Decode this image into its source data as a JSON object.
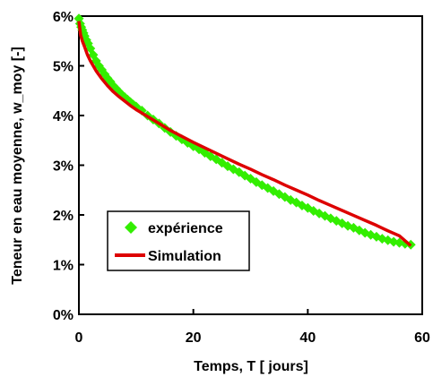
{
  "chart_data": {
    "type": "scatter",
    "title": "",
    "xlabel": "Temps, T [ jours]",
    "ylabel": "Teneur en eau moyenne, w_moy [-]",
    "xlim": [
      0,
      60
    ],
    "ylim": [
      0,
      6
    ],
    "x_ticks": [
      "0",
      "20",
      "40",
      "60"
    ],
    "y_ticks": [
      "0%",
      "1%",
      "2%",
      "3%",
      "4%",
      "5%",
      "6%"
    ],
    "grid": false,
    "legend_position": "lower-left",
    "colors": {
      "experience": "#33ee00",
      "simulation": "#dd0000"
    },
    "series": [
      {
        "name": "expérience",
        "style": "markers",
        "marker": "diamond",
        "x": [
          0,
          0.2,
          0.4,
          0.6,
          0.8,
          1,
          1.3,
          1.6,
          2,
          2.5,
          3,
          3.5,
          4,
          4.5,
          5,
          5.5,
          6,
          6.5,
          7,
          7.5,
          8,
          8.5,
          9,
          9.5,
          10,
          11,
          12,
          13,
          14,
          15,
          16,
          17,
          18,
          19,
          20,
          21,
          22,
          23,
          24,
          25,
          26,
          27,
          28,
          29,
          30,
          31,
          32,
          33,
          34,
          35,
          36,
          37,
          38,
          39,
          40,
          41,
          42,
          43,
          44,
          45,
          46,
          47,
          48,
          49,
          50,
          51,
          52,
          53,
          54,
          55,
          56,
          57,
          58
        ],
        "y": [
          5.95,
          5.85,
          5.78,
          5.72,
          5.66,
          5.6,
          5.52,
          5.45,
          5.35,
          5.22,
          5.1,
          5.0,
          4.92,
          4.83,
          4.75,
          4.68,
          4.6,
          4.54,
          4.48,
          4.42,
          4.37,
          4.32,
          4.27,
          4.22,
          4.18,
          4.1,
          4.0,
          3.92,
          3.84,
          3.75,
          3.67,
          3.59,
          3.52,
          3.45,
          3.38,
          3.32,
          3.25,
          3.18,
          3.12,
          3.05,
          2.98,
          2.92,
          2.86,
          2.79,
          2.73,
          2.66,
          2.6,
          2.54,
          2.48,
          2.42,
          2.36,
          2.3,
          2.25,
          2.19,
          2.14,
          2.08,
          2.03,
          1.98,
          1.93,
          1.88,
          1.83,
          1.78,
          1.74,
          1.69,
          1.64,
          1.6,
          1.56,
          1.52,
          1.49,
          1.46,
          1.44,
          1.42,
          1.4
        ]
      },
      {
        "name": "Simulation",
        "style": "line",
        "x": [
          0,
          0.3,
          0.6,
          1,
          1.5,
          2,
          3,
          4,
          5,
          6,
          7,
          8,
          9,
          10,
          12,
          14,
          16,
          18,
          20,
          22,
          24,
          26,
          28,
          30,
          32,
          34,
          36,
          38,
          40,
          42,
          44,
          46,
          48,
          50,
          52,
          54,
          56,
          58
        ],
        "y": [
          5.9,
          5.62,
          5.5,
          5.38,
          5.22,
          5.1,
          4.9,
          4.74,
          4.6,
          4.48,
          4.38,
          4.29,
          4.2,
          4.12,
          3.98,
          3.84,
          3.7,
          3.58,
          3.46,
          3.35,
          3.24,
          3.13,
          3.02,
          2.92,
          2.81,
          2.71,
          2.6,
          2.5,
          2.4,
          2.29,
          2.19,
          2.09,
          1.99,
          1.89,
          1.79,
          1.68,
          1.58,
          1.38
        ]
      }
    ]
  }
}
